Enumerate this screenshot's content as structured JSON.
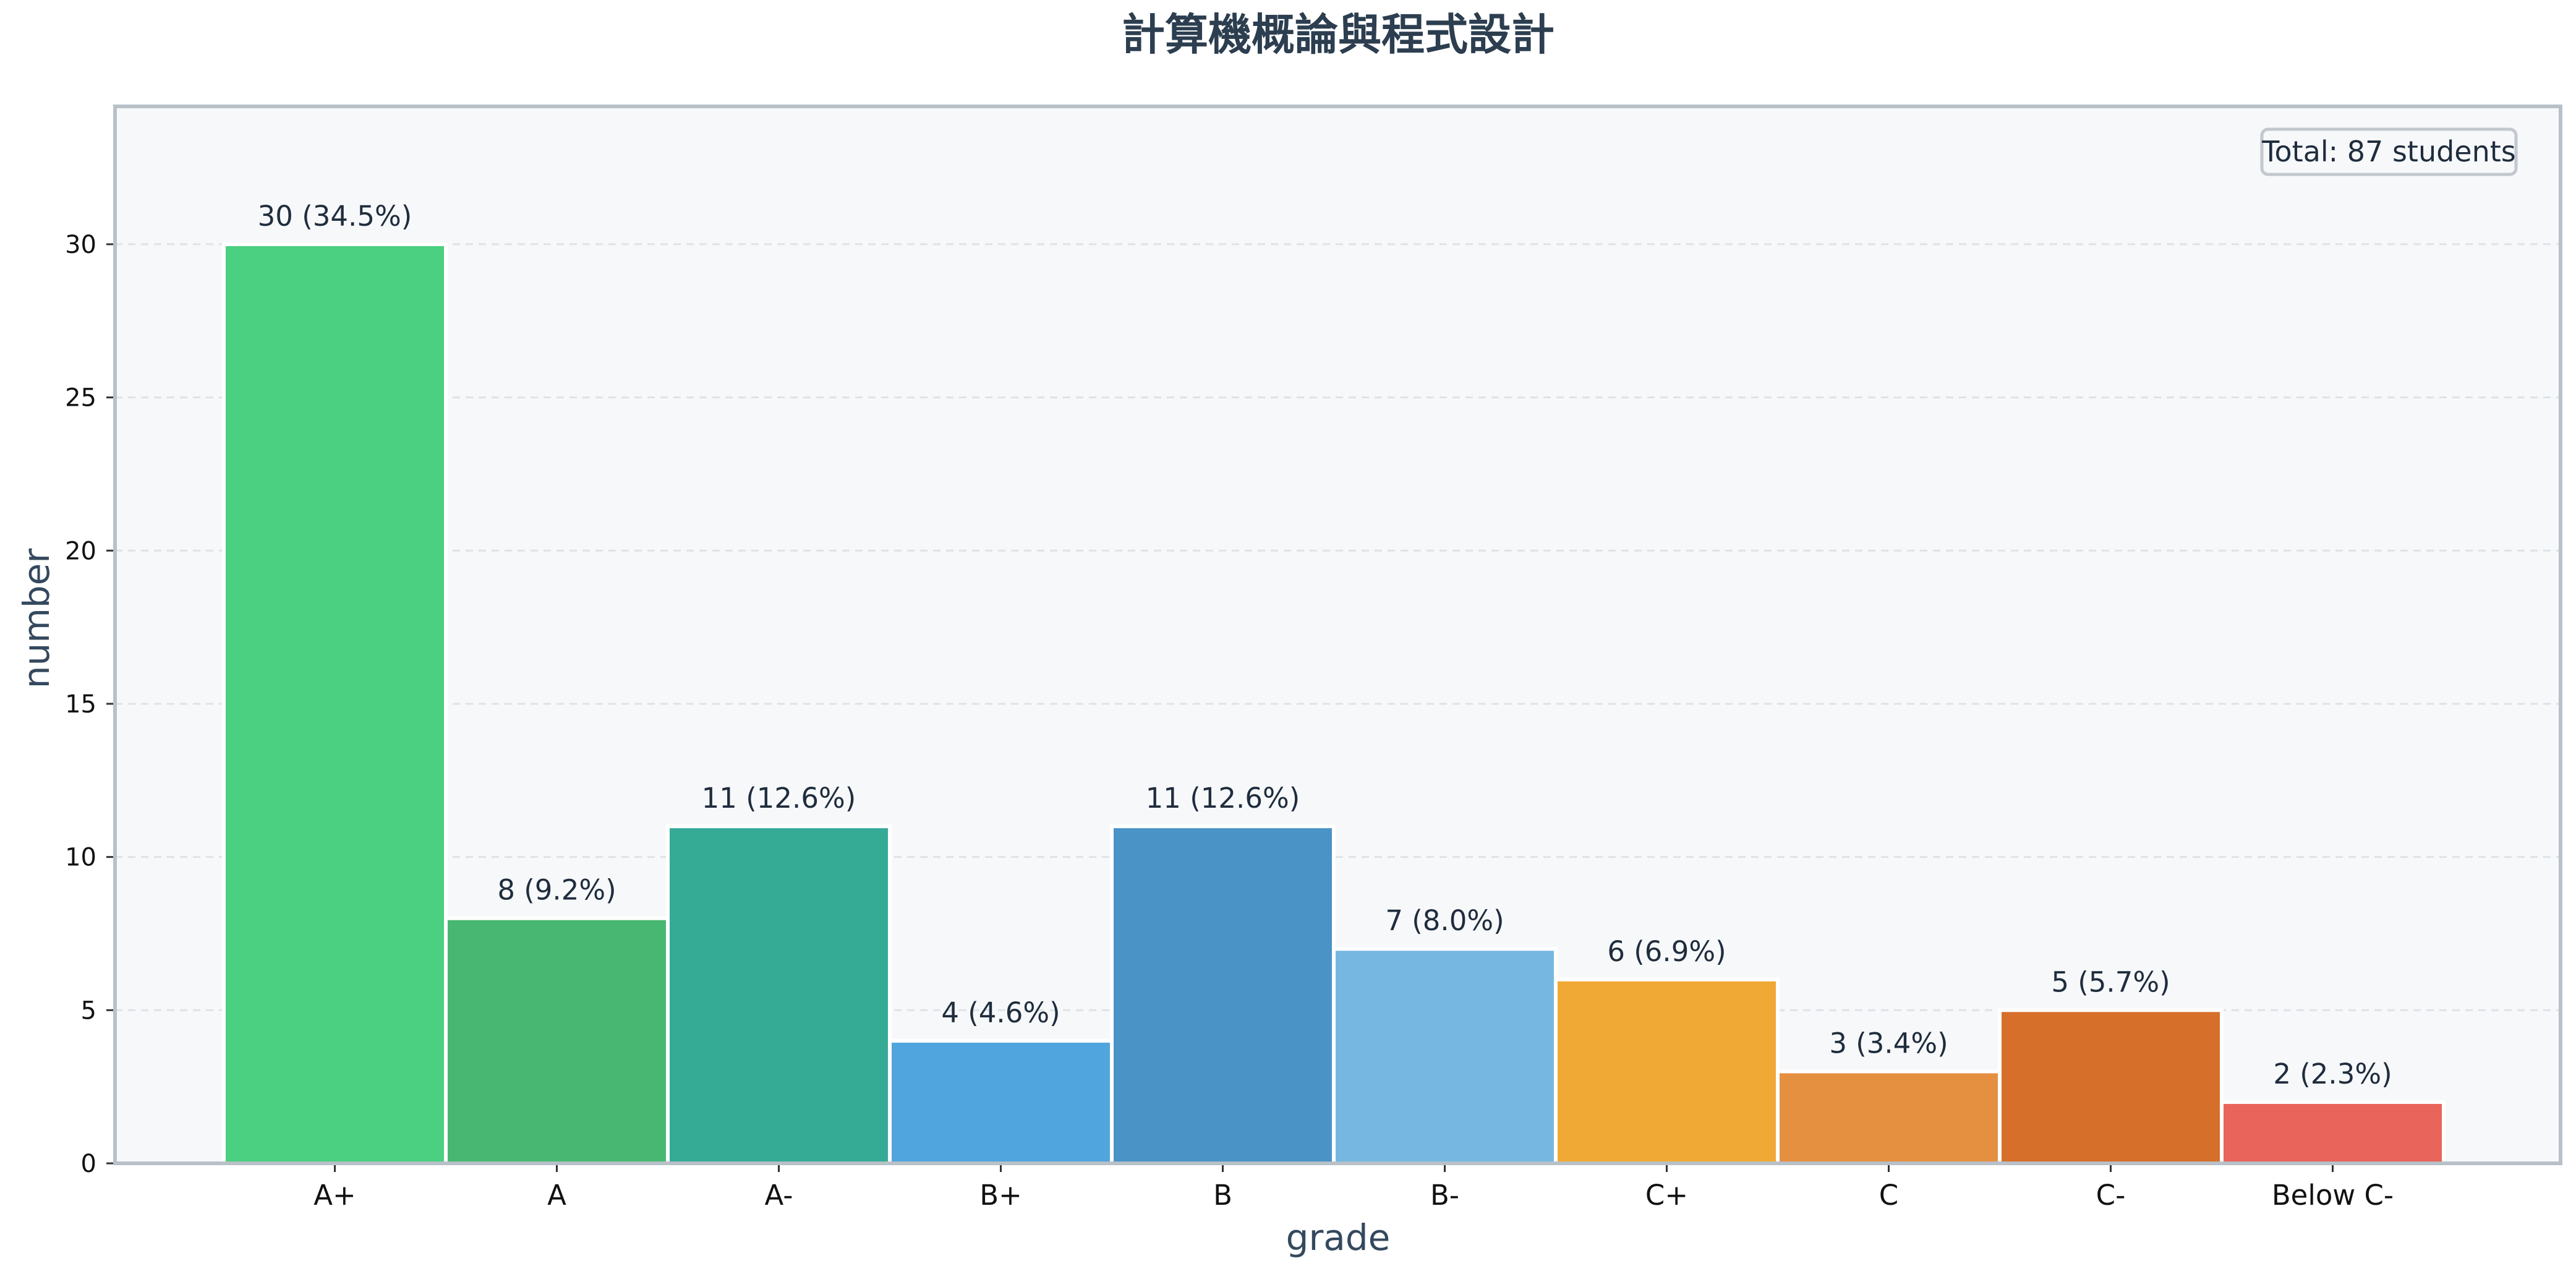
{
  "chart_data": {
    "type": "bar",
    "title": "計算機概論與程式設計",
    "xlabel": "grade",
    "ylabel": "number",
    "categories": [
      "A+",
      "A",
      "A-",
      "B+",
      "B",
      "B-",
      "C+",
      "C",
      "C-",
      "Below C-"
    ],
    "values": [
      30,
      8,
      11,
      4,
      11,
      7,
      6,
      3,
      5,
      2
    ],
    "value_labels": [
      "30 (34.5%)",
      "8 (9.2%)",
      "11 (12.6%)",
      "4 (4.6%)",
      "11 (12.6%)",
      "7 (8.0%)",
      "6 (6.9%)",
      "3 (3.4%)",
      "5 (5.7%)",
      "2 (2.3%)"
    ],
    "colors": [
      "#4bcf80",
      "#48b772",
      "#35ab96",
      "#51a5de",
      "#4a93c6",
      "#76b7e2",
      "#f0a935",
      "#e58f41",
      "#d66f2a",
      "#e9645a"
    ],
    "ylim": [
      0,
      34.5
    ],
    "yticks": [
      0,
      5,
      10,
      15,
      20,
      25,
      30
    ],
    "grid": true,
    "annotation": "Total: 87 students",
    "annotation_position": "top-right"
  },
  "style": {
    "plot_background": "#f7f8fa",
    "frame_color": "#b8c0c8",
    "grid_color": "#dde3e8",
    "bar_edge_color": "#ffffff"
  }
}
